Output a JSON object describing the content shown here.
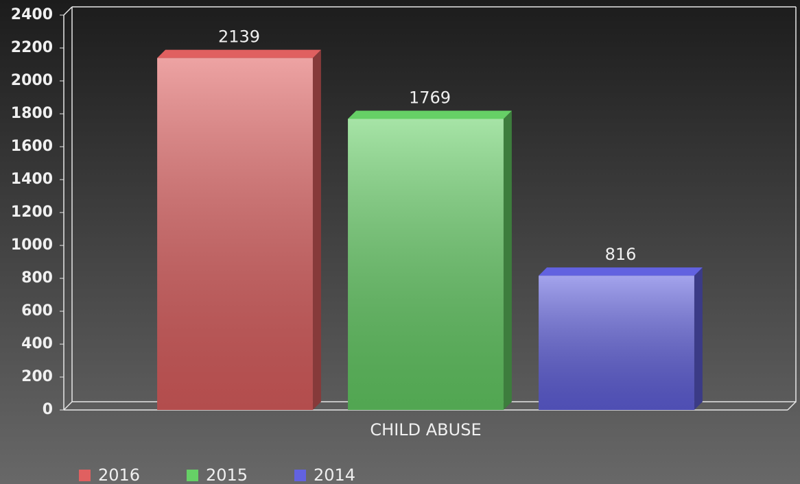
{
  "chart_data": {
    "type": "bar",
    "categories": [
      "CHILD ABUSE"
    ],
    "series": [
      {
        "name": "2016",
        "color": "#e06060",
        "values": [
          2139
        ]
      },
      {
        "name": "2015",
        "color": "#66d066",
        "values": [
          1769
        ]
      },
      {
        "name": "2014",
        "color": "#6262e0",
        "values": [
          816
        ]
      }
    ],
    "ylim": [
      0,
      2400
    ],
    "yticks": [
      0,
      200,
      400,
      600,
      800,
      1000,
      1200,
      1400,
      1600,
      1800,
      2000,
      2200,
      2400
    ],
    "grid": false,
    "legend": "bottom-left"
  }
}
